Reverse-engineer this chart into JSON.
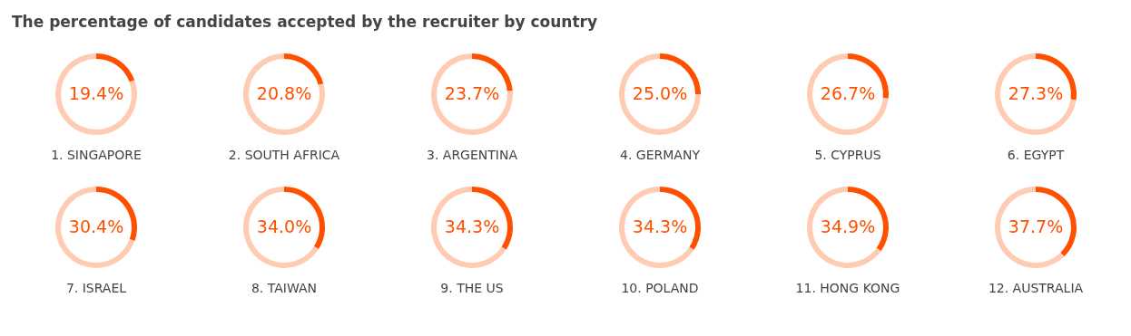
{
  "chart_data": [
    {
      "type": "donut",
      "title": "1. SINGAPORE",
      "categories": [
        null,
        null
      ],
      "values": [
        19.4,
        80.6
      ],
      "colors": [
        "#ff5000",
        "#ffcbb2"
      ],
      "value_labels": [
        "19.4%",
        null
      ]
    },
    {
      "type": "donut",
      "title": "2. SOUTH AFRICA",
      "categories": [
        null,
        null
      ],
      "values": [
        20.8,
        79.2
      ],
      "colors": [
        "#ff5000",
        "#ffcbb2"
      ],
      "value_labels": [
        "20.8%",
        null
      ]
    },
    {
      "type": "donut",
      "title": "3. ARGENTINA",
      "categories": [
        null,
        null
      ],
      "values": [
        23.7,
        76.3
      ],
      "colors": [
        "#ff5000",
        "#ffcbb2"
      ],
      "value_labels": [
        "23.7%",
        null
      ]
    },
    {
      "type": "donut",
      "title": "4. GERMANY",
      "categories": [
        null,
        null
      ],
      "values": [
        25.0,
        75.0
      ],
      "colors": [
        "#ff5000",
        "#ffcbb2"
      ],
      "value_labels": [
        "25.0%",
        null
      ]
    },
    {
      "type": "donut",
      "title": "5. CYPRUS",
      "categories": [
        null,
        null
      ],
      "values": [
        26.7,
        73.3
      ],
      "colors": [
        "#ff5000",
        "#ffcbb2"
      ],
      "value_labels": [
        "26.7%",
        null
      ]
    },
    {
      "type": "donut",
      "title": "6. EGYPT",
      "categories": [
        null,
        null
      ],
      "values": [
        27.3,
        72.7
      ],
      "colors": [
        "#ff5000",
        "#ffcbb2"
      ],
      "value_labels": [
        "27.3%",
        null
      ]
    },
    {
      "type": "donut",
      "title": "7. ISRAEL",
      "categories": [
        null,
        null
      ],
      "values": [
        30.4,
        69.6
      ],
      "colors": [
        "#ff5000",
        "#ffcbb2"
      ],
      "value_labels": [
        "30.4%",
        null
      ]
    },
    {
      "type": "donut",
      "title": "8. TAIWAN",
      "categories": [
        null,
        null
      ],
      "values": [
        34.0,
        66.0
      ],
      "colors": [
        "#ff5000",
        "#ffcbb2"
      ],
      "value_labels": [
        "34.0%",
        null
      ]
    },
    {
      "type": "donut",
      "title": "9. THE US",
      "categories": [
        null,
        null
      ],
      "values": [
        34.3,
        65.7
      ],
      "colors": [
        "#ff5000",
        "#ffcbb2"
      ],
      "value_labels": [
        "34.3%",
        null
      ]
    },
    {
      "type": "donut",
      "title": "10. POLAND",
      "categories": [
        null,
        null
      ],
      "values": [
        34.3,
        65.7
      ],
      "colors": [
        "#ff5000",
        "#ffcbb2"
      ],
      "value_labels": [
        "34.3%",
        null
      ]
    },
    {
      "type": "donut",
      "title": "11. HONG KONG",
      "categories": [
        null,
        null
      ],
      "values": [
        34.9,
        65.1
      ],
      "colors": [
        "#ff5000",
        "#ffcbb2"
      ],
      "value_labels": [
        "34.9%",
        null
      ]
    },
    {
      "type": "donut",
      "title": "12. AUSTRALIA",
      "categories": [
        null,
        null
      ],
      "values": [
        37.7,
        62.3
      ],
      "colors": [
        "#ff5000",
        "#ffcbb2"
      ],
      "value_labels": [
        "37.7%",
        null
      ]
    },
    {
      "type": "other",
      "title": "The percentage of candidates accepted by the recruiter by country"
    }
  ]
}
